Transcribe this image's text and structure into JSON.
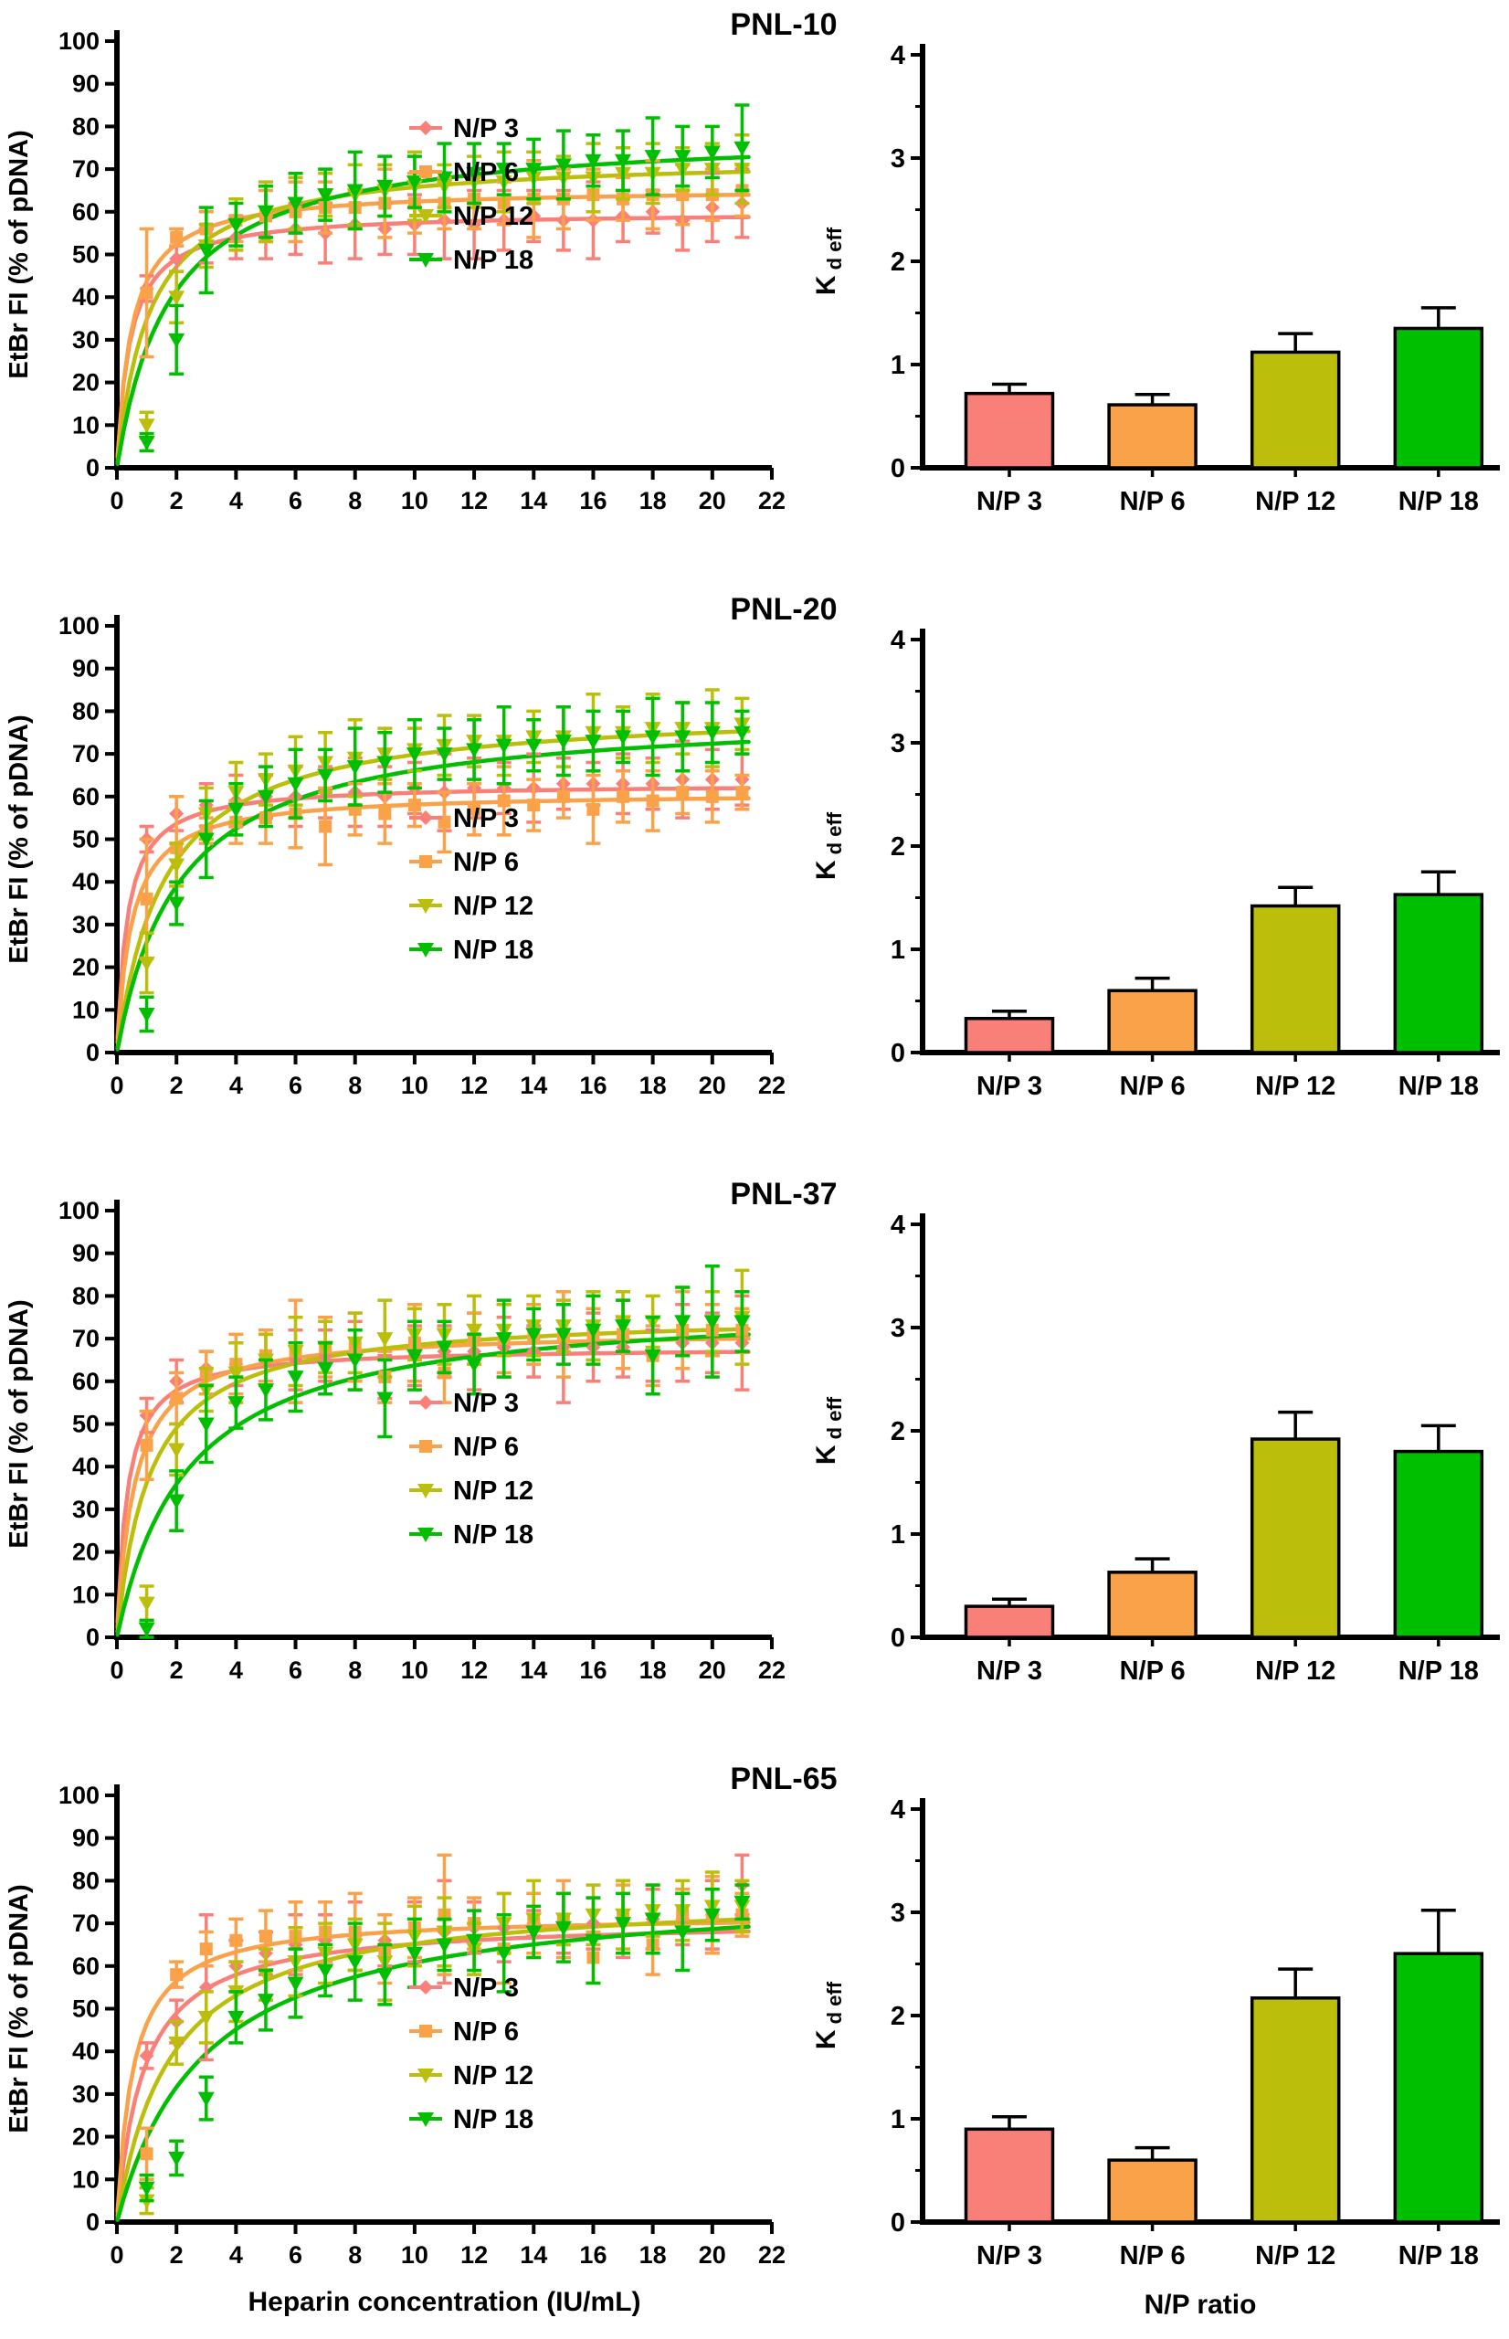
{
  "figure": {
    "background": "#FFFFFF",
    "text_color": "#000000"
  },
  "colors": {
    "np3": "#F98078",
    "np6": "#FAA24A",
    "np12": "#BBBE0A",
    "np18": "#00BF00",
    "axis": "#000000"
  },
  "legend": {
    "items": [
      {
        "label": "N/P 3",
        "color_key": "np3",
        "marker": "diamond"
      },
      {
        "label": "N/P 6",
        "color_key": "np6",
        "marker": "square"
      },
      {
        "label": "N/P 12",
        "color_key": "np12",
        "marker": "triangle-down"
      },
      {
        "label": "N/P 18",
        "color_key": "np18",
        "marker": "triangle-down"
      }
    ]
  },
  "axes": {
    "scatter": {
      "xlabel_last_row": "Heparin concentration (IU/mL)",
      "ylabel": "EtBr FI (% of pDNA)",
      "xlim": [
        0,
        22
      ],
      "ylim": [
        0,
        100
      ],
      "xticks": [
        0,
        2,
        4,
        6,
        8,
        10,
        12,
        14,
        16,
        18,
        20,
        22
      ],
      "yticks": [
        0,
        10,
        20,
        30,
        40,
        50,
        60,
        70,
        80,
        90,
        100
      ],
      "x_values": [
        1,
        2,
        3,
        4,
        5,
        6,
        7,
        8,
        9,
        10,
        11,
        12,
        13,
        14,
        15,
        16,
        17,
        18,
        19,
        20,
        21
      ]
    },
    "bars": {
      "xlabel_last_row": "N/P ratio",
      "ylabel_main": "K",
      "ylabel_sub": "d eff",
      "ylim": [
        0,
        4
      ],
      "yticks": [
        0,
        1,
        2,
        3,
        4
      ],
      "minor_ticks": [
        0.5,
        1.5,
        2.5,
        3.5
      ]
    }
  },
  "chart_data": [
    {
      "title": "PNL-10",
      "legend_y": 140,
      "scatter_series": [
        {
          "name": "N/P 3",
          "color_key": "np3",
          "marker": "diamond",
          "fit_bmax": 60,
          "fit_kd": 0.45,
          "y": [
            42,
            49,
            52,
            54,
            54,
            56,
            55,
            57,
            56,
            57,
            58,
            57,
            58,
            59,
            58,
            58,
            59,
            60,
            58,
            61,
            62
          ],
          "err": [
            3,
            3,
            4,
            5,
            5,
            6,
            7,
            8,
            6,
            7,
            9,
            8,
            7,
            6,
            7,
            9,
            6,
            5,
            7,
            8,
            8
          ]
        },
        {
          "name": "N/P 6",
          "color_key": "np6",
          "marker": "square",
          "fit_bmax": 65.5,
          "fit_kd": 0.5,
          "y": [
            41,
            54,
            56,
            58,
            59,
            60,
            61,
            61,
            62,
            62,
            62,
            63,
            62,
            63,
            63,
            64,
            63,
            64,
            64,
            64,
            65
          ],
          "err": [
            15,
            2,
            4,
            5,
            6,
            7,
            6,
            5,
            8,
            7,
            6,
            7,
            5,
            9,
            7,
            6,
            5,
            8,
            7,
            6,
            6
          ]
        },
        {
          "name": "N/P 12",
          "color_key": "np12",
          "marker": "triangle-down",
          "fit_bmax": 73,
          "fit_kd": 1.1,
          "y": [
            10,
            40,
            52,
            57,
            60,
            62,
            64,
            64,
            65,
            66,
            66,
            67,
            67,
            68,
            68,
            68,
            69,
            69,
            70,
            70,
            70
          ],
          "err": [
            3,
            6,
            5,
            6,
            7,
            6,
            5,
            7,
            6,
            8,
            5,
            6,
            7,
            6,
            5,
            8,
            6,
            7,
            5,
            6,
            8
          ]
        },
        {
          "name": "N/P 18",
          "color_key": "np18",
          "marker": "triangle-down",
          "fit_bmax": 79,
          "fit_kd": 1.8,
          "y": [
            6,
            30,
            51,
            57,
            60,
            62,
            64,
            65,
            66,
            67,
            68,
            69,
            70,
            70,
            71,
            72,
            72,
            73,
            73,
            74,
            75
          ],
          "err": [
            2,
            8,
            10,
            5,
            6,
            7,
            6,
            9,
            7,
            6,
            8,
            7,
            6,
            7,
            8,
            6,
            7,
            9,
            7,
            6,
            10
          ]
        }
      ],
      "bar_chart": {
        "type": "bar",
        "categories": [
          "N/P 3",
          "N/P 6",
          "N/P 12",
          "N/P 18"
        ],
        "values": [
          0.72,
          0.61,
          1.12,
          1.35
        ],
        "errors": [
          0.09,
          0.1,
          0.18,
          0.2
        ],
        "color_keys": [
          "np3",
          "np6",
          "np12",
          "np18"
        ]
      }
    },
    {
      "title": "PNL-20",
      "legend_y": 255,
      "scatter_series": [
        {
          "name": "N/P 3",
          "color_key": "np3",
          "marker": "diamond",
          "fit_bmax": 63,
          "fit_kd": 0.35,
          "y": [
            50,
            56,
            58,
            59,
            60,
            60,
            61,
            61,
            60,
            62,
            61,
            62,
            62,
            62,
            63,
            63,
            63,
            63,
            64,
            64,
            64
          ],
          "err": [
            3,
            4,
            5,
            6,
            5,
            7,
            6,
            8,
            7,
            6,
            9,
            7,
            6,
            8,
            6,
            5,
            7,
            6,
            9,
            7,
            6
          ]
        },
        {
          "name": "N/P 6",
          "color_key": "np6",
          "marker": "square",
          "fit_bmax": 61,
          "fit_kd": 0.5,
          "y": [
            36,
            48,
            52,
            54,
            55,
            56,
            53,
            57,
            56,
            58,
            54,
            57,
            59,
            58,
            60,
            57,
            60,
            59,
            61,
            60,
            61
          ],
          "err": [
            14,
            12,
            3,
            5,
            6,
            8,
            9,
            6,
            7,
            5,
            7,
            6,
            8,
            6,
            5,
            8,
            6,
            7,
            5,
            6,
            4
          ]
        },
        {
          "name": "N/P 12",
          "color_key": "np12",
          "marker": "triangle-down",
          "fit_bmax": 81,
          "fit_kd": 1.6,
          "y": [
            21,
            44,
            56,
            61,
            64,
            66,
            68,
            69,
            70,
            71,
            72,
            73,
            73,
            74,
            74,
            75,
            75,
            76,
            76,
            76,
            77
          ],
          "err": [
            7,
            5,
            6,
            7,
            6,
            8,
            7,
            9,
            6,
            5,
            7,
            6,
            8,
            6,
            7,
            9,
            6,
            8,
            6,
            9,
            6
          ]
        },
        {
          "name": "N/P 18",
          "color_key": "np18",
          "marker": "triangle-down",
          "fit_bmax": 80,
          "fit_kd": 2.1,
          "y": [
            9,
            35,
            50,
            57,
            60,
            63,
            65,
            67,
            68,
            70,
            70,
            71,
            72,
            72,
            73,
            73,
            74,
            74,
            74,
            75,
            75
          ],
          "err": [
            4,
            5,
            9,
            6,
            7,
            8,
            6,
            9,
            7,
            8,
            6,
            7,
            9,
            6,
            8,
            7,
            6,
            9,
            8,
            7,
            5
          ]
        }
      ],
      "bar_chart": {
        "type": "bar",
        "categories": [
          "N/P 3",
          "N/P 6",
          "N/P 12",
          "N/P 18"
        ],
        "values": [
          0.33,
          0.6,
          1.42,
          1.53
        ],
        "errors": [
          0.07,
          0.12,
          0.18,
          0.22
        ],
        "color_keys": [
          "np3",
          "np6",
          "np12",
          "np18"
        ]
      }
    },
    {
      "title": "PNL-37",
      "legend_y": 255,
      "scatter_series": [
        {
          "name": "N/P 3",
          "color_key": "np3",
          "marker": "diamond",
          "fit_bmax": 68,
          "fit_kd": 0.35,
          "y": [
            52,
            60,
            63,
            64,
            65,
            65,
            66,
            66,
            61,
            66,
            67,
            67,
            68,
            67,
            68,
            68,
            68,
            66,
            69,
            69,
            69
          ],
          "err": [
            4,
            5,
            4,
            5,
            6,
            7,
            6,
            8,
            5,
            7,
            6,
            9,
            7,
            6,
            13,
            8,
            7,
            6,
            9,
            7,
            11
          ]
        },
        {
          "name": "N/P 6",
          "color_key": "np6",
          "marker": "square",
          "fit_bmax": 72,
          "fit_kd": 0.6,
          "y": [
            45,
            56,
            62,
            64,
            66,
            67,
            68,
            68,
            61,
            69,
            62,
            70,
            70,
            71,
            71,
            71,
            71,
            66,
            72,
            72,
            72
          ],
          "err": [
            8,
            6,
            5,
            7,
            6,
            12,
            7,
            8,
            6,
            9,
            7,
            6,
            8,
            7,
            10,
            6,
            8,
            7,
            9,
            6,
            5
          ]
        },
        {
          "name": "N/P 12",
          "color_key": "np12",
          "marker": "triangle-down",
          "fit_bmax": 76,
          "fit_kd": 1.1,
          "y": [
            8,
            44,
            58,
            62,
            65,
            67,
            68,
            69,
            70,
            71,
            71,
            72,
            72,
            73,
            73,
            73,
            74,
            74,
            74,
            74,
            75
          ],
          "err": [
            4,
            6,
            5,
            7,
            6,
            8,
            6,
            7,
            9,
            6,
            7,
            8,
            6,
            7,
            6,
            8,
            7,
            6,
            8,
            7,
            11
          ]
        },
        {
          "name": "N/P 18",
          "color_key": "np18",
          "marker": "triangle-down",
          "fit_bmax": 79,
          "fit_kd": 2.4,
          "y": [
            2,
            32,
            50,
            55,
            58,
            61,
            63,
            65,
            56,
            66,
            68,
            64,
            70,
            71,
            71,
            72,
            73,
            66,
            74,
            74,
            74
          ],
          "err": [
            2,
            7,
            9,
            6,
            7,
            8,
            6,
            7,
            9,
            8,
            6,
            7,
            9,
            6,
            7,
            8,
            6,
            9,
            8,
            13,
            7
          ]
        }
      ],
      "bar_chart": {
        "type": "bar",
        "categories": [
          "N/P 3",
          "N/P 6",
          "N/P 12",
          "N/P 18"
        ],
        "values": [
          0.3,
          0.63,
          1.92,
          1.8
        ],
        "errors": [
          0.07,
          0.13,
          0.26,
          0.25
        ],
        "color_keys": [
          "np3",
          "np6",
          "np12",
          "np18"
        ]
      }
    },
    {
      "title": "PNL-65",
      "legend_y": 255,
      "scatter_series": [
        {
          "name": "N/P 3",
          "color_key": "np3",
          "marker": "diamond",
          "fit_bmax": 71,
          "fit_kd": 0.9,
          "y": [
            39,
            47,
            55,
            60,
            63,
            65,
            66,
            67,
            66,
            68,
            68,
            69,
            69,
            70,
            70,
            70,
            71,
            71,
            71,
            72,
            79
          ],
          "err": [
            3,
            5,
            17,
            6,
            5,
            7,
            6,
            8,
            6,
            7,
            12,
            6,
            8,
            3,
            7,
            6,
            9,
            7,
            6,
            8,
            7
          ]
        },
        {
          "name": "N/P 6",
          "color_key": "np6",
          "marker": "square",
          "fit_bmax": 72,
          "fit_kd": 0.55,
          "y": [
            16,
            58,
            64,
            66,
            67,
            67,
            68,
            68,
            64,
            69,
            72,
            70,
            64,
            70,
            71,
            62,
            71,
            65,
            72,
            72,
            72
          ],
          "err": [
            6,
            3,
            4,
            5,
            6,
            8,
            7,
            9,
            8,
            7,
            14,
            6,
            8,
            7,
            9,
            6,
            8,
            7,
            6,
            9,
            5
          ]
        },
        {
          "name": "N/P 12",
          "color_key": "np12",
          "marker": "triangle-down",
          "fit_bmax": 77,
          "fit_kd": 1.8,
          "y": [
            5,
            42,
            48,
            54,
            58,
            61,
            63,
            65,
            61,
            67,
            68,
            64,
            70,
            71,
            71,
            72,
            72,
            73,
            73,
            74,
            74
          ],
          "err": [
            3,
            5,
            6,
            7,
            6,
            8,
            7,
            6,
            9,
            7,
            8,
            6,
            7,
            9,
            6,
            7,
            8,
            6,
            7,
            8,
            6
          ]
        },
        {
          "name": "N/P 18",
          "color_key": "np18",
          "marker": "triangle-down",
          "fit_bmax": 79,
          "fit_kd": 3.0,
          "y": [
            8,
            15,
            29,
            48,
            52,
            56,
            59,
            61,
            58,
            63,
            65,
            66,
            63,
            68,
            69,
            66,
            70,
            71,
            68,
            72,
            75
          ],
          "err": [
            3,
            4,
            5,
            6,
            7,
            8,
            6,
            9,
            7,
            8,
            6,
            7,
            9,
            6,
            8,
            10,
            7,
            8,
            9,
            6,
            4
          ]
        }
      ],
      "bar_chart": {
        "type": "bar",
        "categories": [
          "N/P 3",
          "N/P 6",
          "N/P 12",
          "N/P 18"
        ],
        "values": [
          0.9,
          0.6,
          2.17,
          2.6
        ],
        "errors": [
          0.12,
          0.12,
          0.28,
          0.42
        ],
        "color_keys": [
          "np3",
          "np6",
          "np12",
          "np18"
        ]
      }
    }
  ]
}
